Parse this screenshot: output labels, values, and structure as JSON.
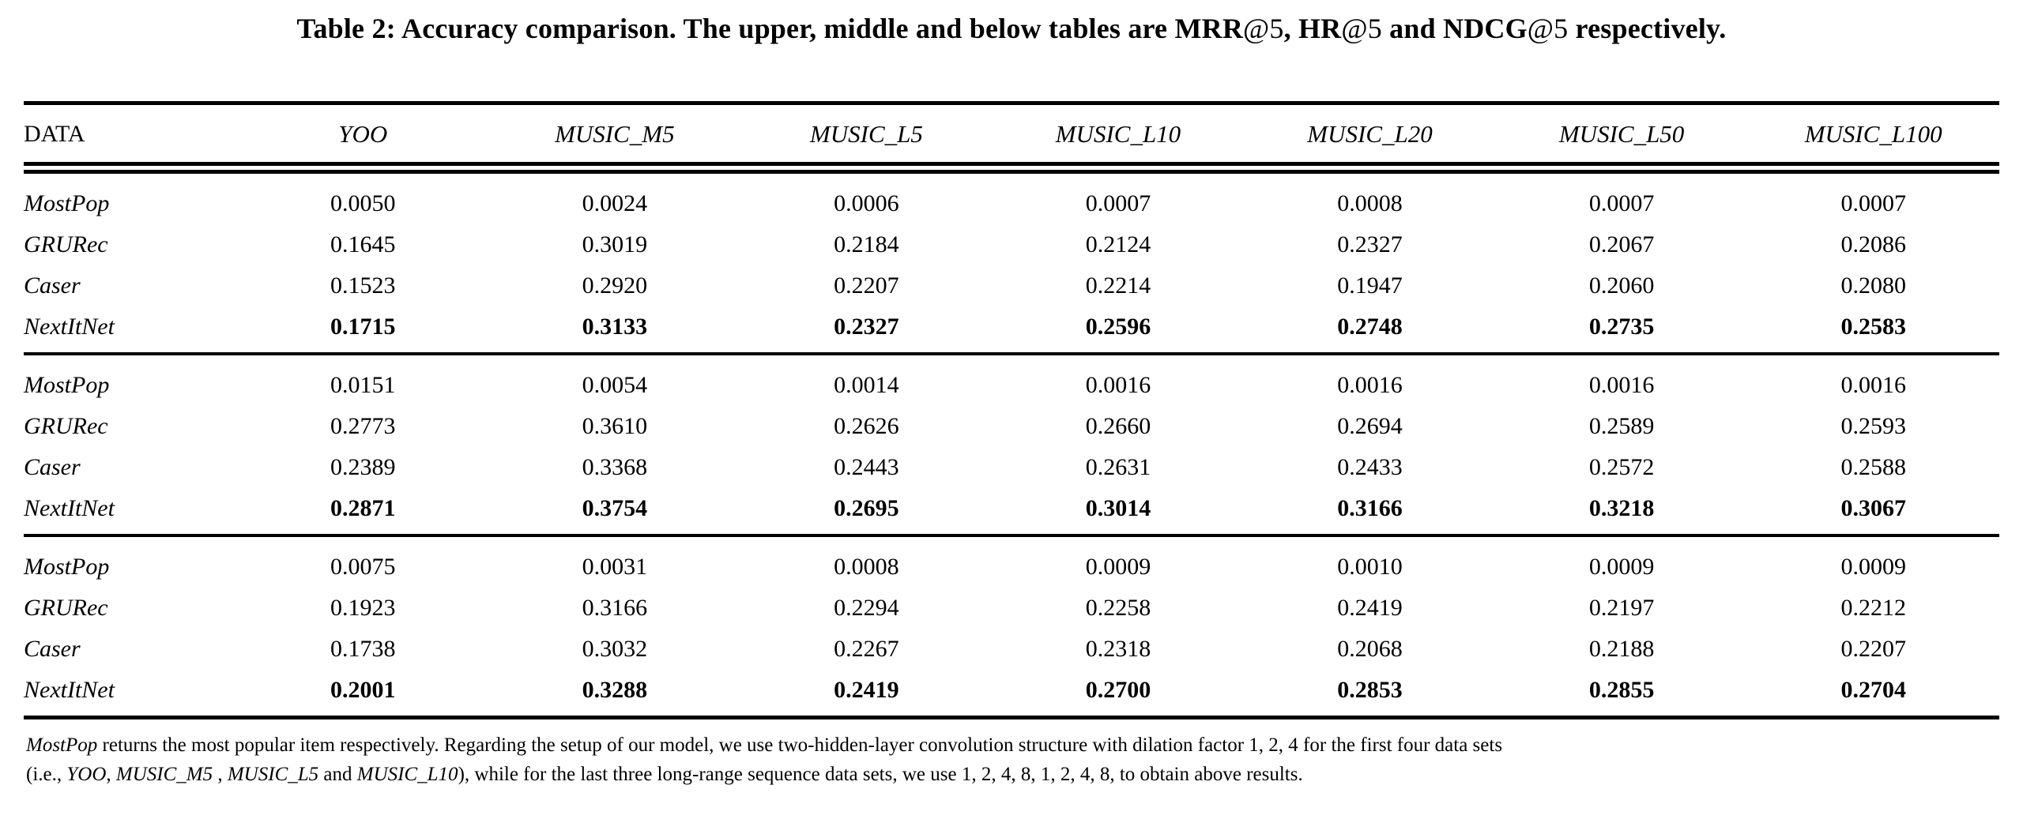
{
  "caption": {
    "label": "Table 2:",
    "segments": [
      {
        "text": " Accuracy comparison. The upper, middle and below tables are "
      },
      {
        "text": "MRR"
      },
      {
        "text": "@5"
      },
      {
        "text": ", "
      },
      {
        "text": "HR"
      },
      {
        "text": "@5"
      },
      {
        "text": " and "
      },
      {
        "text": "NDCG"
      },
      {
        "text": "@5"
      },
      {
        "text": " respectively."
      }
    ]
  },
  "table": {
    "columns": [
      "DATA",
      "YOO",
      "MUSIC_M5",
      "MUSIC_L5",
      "MUSIC_L10",
      "MUSIC_L20",
      "MUSIC_L50",
      "MUSIC_L100"
    ],
    "sections": [
      {
        "metric": "MRR@5",
        "rows": [
          {
            "model": "MostPop",
            "bold": false,
            "values": [
              "0.0050",
              "0.0024",
              "0.0006",
              "0.0007",
              "0.0008",
              "0.0007",
              "0.0007"
            ]
          },
          {
            "model": "GRURec",
            "bold": false,
            "values": [
              "0.1645",
              "0.3019",
              "0.2184",
              "0.2124",
              "0.2327",
              "0.2067",
              "0.2086"
            ]
          },
          {
            "model": "Caser",
            "bold": false,
            "values": [
              "0.1523",
              "0.2920",
              "0.2207",
              "0.2214",
              "0.1947",
              "0.2060",
              "0.2080"
            ]
          },
          {
            "model": "NextItNet",
            "bold": true,
            "values": [
              "0.1715",
              "0.3133",
              "0.2327",
              "0.2596",
              "0.2748",
              "0.2735",
              "0.2583"
            ]
          }
        ]
      },
      {
        "metric": "HR@5",
        "rows": [
          {
            "model": "MostPop",
            "bold": false,
            "values": [
              "0.0151",
              "0.0054",
              "0.0014",
              "0.0016",
              "0.0016",
              "0.0016",
              "0.0016"
            ]
          },
          {
            "model": "GRURec",
            "bold": false,
            "values": [
              "0.2773",
              "0.3610",
              "0.2626",
              "0.2660",
              "0.2694",
              "0.2589",
              "0.2593"
            ]
          },
          {
            "model": "Caser",
            "bold": false,
            "values": [
              "0.2389",
              "0.3368",
              "0.2443",
              "0.2631",
              "0.2433",
              "0.2572",
              "0.2588"
            ]
          },
          {
            "model": "NextItNet",
            "bold": true,
            "values": [
              "0.2871",
              "0.3754",
              "0.2695",
              "0.3014",
              "0.3166",
              "0.3218",
              "0.3067"
            ]
          }
        ]
      },
      {
        "metric": "NDCG@5",
        "rows": [
          {
            "model": "MostPop",
            "bold": false,
            "values": [
              "0.0075",
              "0.0031",
              "0.0008",
              "0.0009",
              "0.0010",
              "0.0009",
              "0.0009"
            ]
          },
          {
            "model": "GRURec",
            "bold": false,
            "values": [
              "0.1923",
              "0.3166",
              "0.2294",
              "0.2258",
              "0.2419",
              "0.2197",
              "0.2212"
            ]
          },
          {
            "model": "Caser",
            "bold": false,
            "values": [
              "0.1738",
              "0.3032",
              "0.2267",
              "0.2318",
              "0.2068",
              "0.2188",
              "0.2207"
            ]
          },
          {
            "model": "NextItNet",
            "bold": true,
            "values": [
              "0.2001",
              "0.3288",
              "0.2419",
              "0.2700",
              "0.2853",
              "0.2855",
              "0.2704"
            ]
          }
        ]
      }
    ]
  },
  "footnote": {
    "line1": {
      "segments": [
        {
          "text": "MostPop",
          "italic": true
        },
        {
          "text": " returns the most popular item respectively. Regarding the setup of our model, we use two-hidden-layer convolution structure with dilation factor 1, 2, 4 for the first four data sets",
          "italic": false
        }
      ]
    },
    "line2": {
      "segments": [
        {
          "text": "(i.e., ",
          "italic": false
        },
        {
          "text": "YOO",
          "italic": true
        },
        {
          "text": ",  ",
          "italic": false
        },
        {
          "text": "MUSIC_M5",
          "italic": true
        },
        {
          "text": " , ",
          "italic": false
        },
        {
          "text": "MUSIC_L5",
          "italic": true
        },
        {
          "text": " and ",
          "italic": false
        },
        {
          "text": "MUSIC_L10",
          "italic": true
        },
        {
          "text": "), while for the last three long-range sequence data sets, we use 1, 2, 4, 8, 1, 2, 4, 8, to obtain above results.",
          "italic": false
        }
      ]
    }
  },
  "colors": {
    "text": "#000000",
    "background": "#ffffff",
    "rule": "#000000"
  }
}
